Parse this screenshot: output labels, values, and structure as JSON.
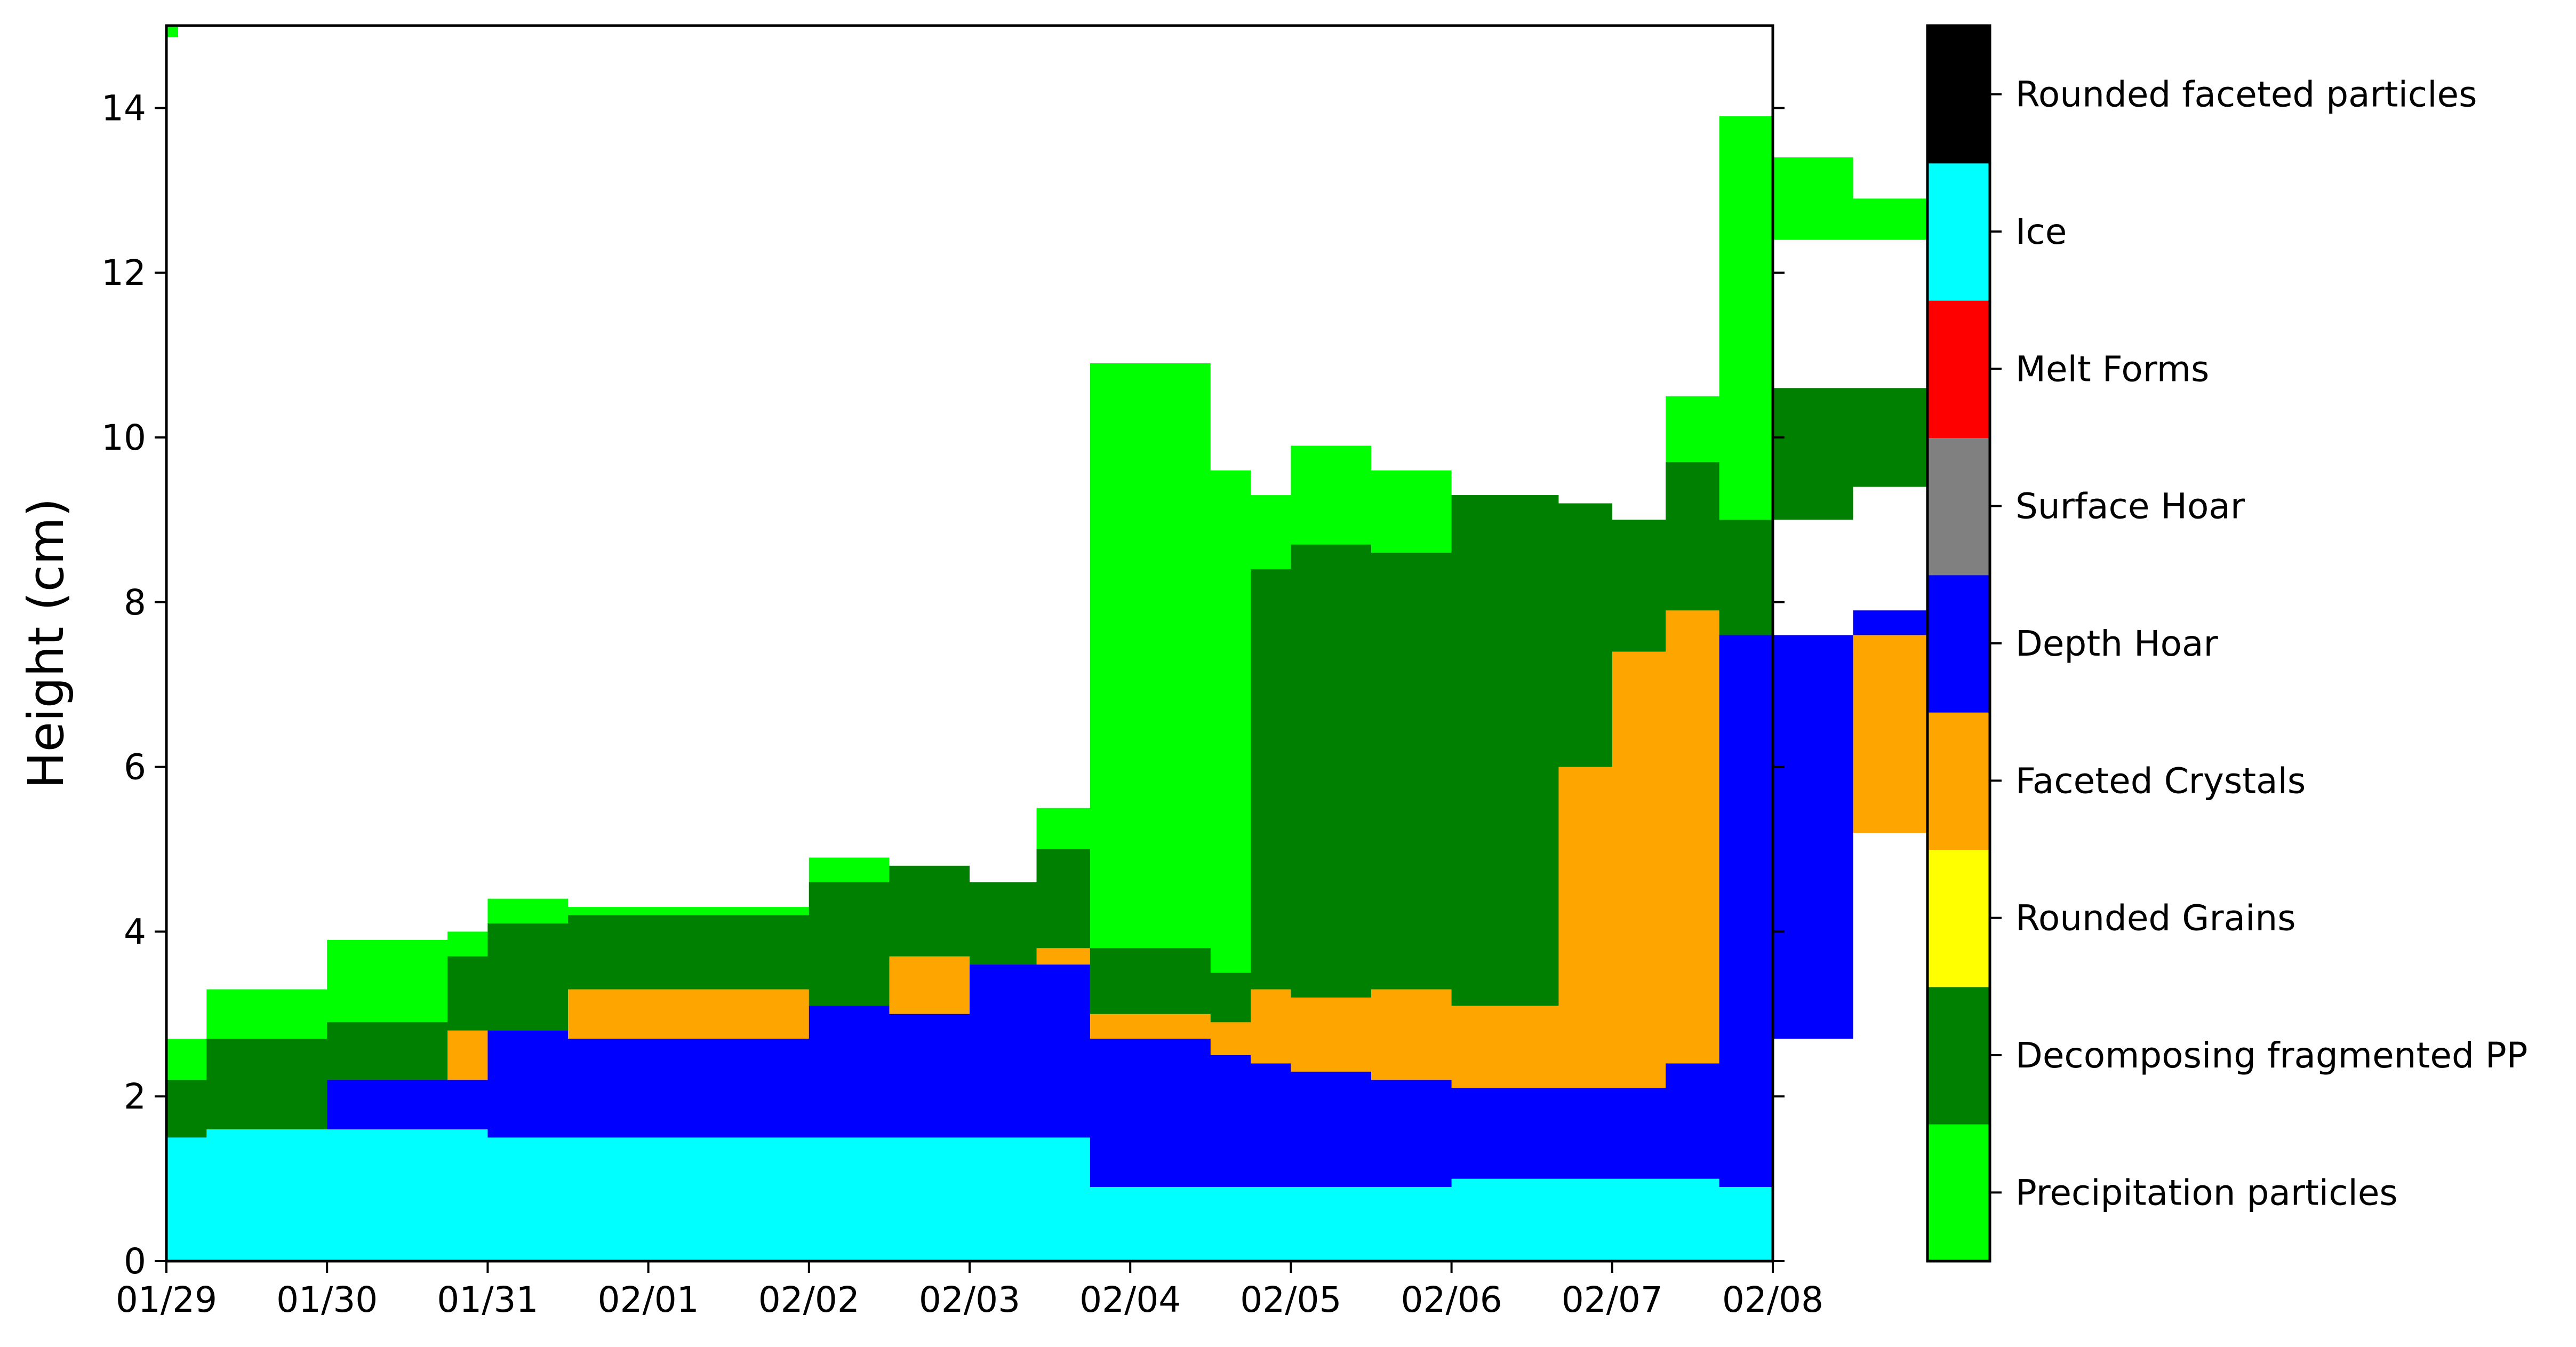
{
  "chart_data": {
    "type": "area",
    "title": "",
    "xlabel": "",
    "ylabel": "Height (cm)",
    "ylim": [
      0,
      15
    ],
    "xlim": [
      "01/29",
      "02/08"
    ],
    "x_ticks": [
      "01/29",
      "01/30",
      "01/31",
      "02/01",
      "02/02",
      "02/03",
      "02/04",
      "02/05",
      "02/06",
      "02/07",
      "02/08"
    ],
    "y_ticks": [
      "0",
      "2",
      "4",
      "6",
      "8",
      "10",
      "12",
      "14"
    ],
    "grid": false,
    "legend_type": "colorbar",
    "legend_placement": "right",
    "legend": [
      {
        "label": "Precipitation particles",
        "color": "#00ff00"
      },
      {
        "label": "Decomposing fragmented PP",
        "color": "#008000"
      },
      {
        "label": "Rounded Grains",
        "color": "#ffff00"
      },
      {
        "label": "Faceted Crystals",
        "color": "#ffa500"
      },
      {
        "label": "Depth Hoar",
        "color": "#0000ff"
      },
      {
        "label": "Surface Hoar",
        "color": "#808080"
      },
      {
        "label": "Melt Forms",
        "color": "#ff0000"
      },
      {
        "label": "Ice",
        "color": "#00ffff"
      },
      {
        "label": "Rounded faceted particles",
        "color": "#000000"
      }
    ],
    "layer_tops_note": "cumulative layer top heights (cm) by date, stacked bottom-up: Ice, Depth Hoar, Faceted Crystals, Decomposing fragmented PP, Precipitation particles",
    "layers": {
      "x": [
        "01/29 00:00",
        "01/29 06:00",
        "01/30 00:00",
        "01/30 18:00",
        "01/31 00:00",
        "01/31 12:00",
        "02/01 00:00",
        "02/01 12:00",
        "02/02 00:00",
        "02/02 10:00",
        "02/02 18:00",
        "02/03 12:00",
        "02/03 18:00",
        "02/04 00:00",
        "02/04 12:00",
        "02/05 00:00",
        "02/05 16:00",
        "02/06 00:00",
        "02/06 08:00",
        "02/06 16:00",
        "02/07 00:00",
        "02/07 12:00",
        "02/08 00:00"
      ],
      "ice": [
        1.5,
        1.6,
        1.6,
        1.6,
        1.5,
        1.5,
        1.5,
        1.5,
        1.5,
        1.5,
        0.9,
        0.9,
        0.9,
        0.9,
        0.9,
        1.0,
        1.0,
        1.0,
        1.0,
        0.9,
        0.75,
        0.75,
        0.75
      ],
      "depth_hoar": [
        1.5,
        1.6,
        2.2,
        2.2,
        2.8,
        2.7,
        3.1,
        3.0,
        3.6,
        3.6,
        2.7,
        2.5,
        2.4,
        2.3,
        2.2,
        2.1,
        2.1,
        2.1,
        2.4,
        7.6,
        2.7,
        7.9,
        7.6
      ],
      "faceted": [
        1.5,
        1.6,
        2.2,
        2.8,
        2.8,
        3.3,
        3.1,
        3.7,
        3.6,
        3.8,
        3.0,
        2.9,
        3.3,
        3.2,
        3.3,
        3.1,
        6.0,
        7.4,
        7.9,
        7.6,
        7.4,
        7.9,
        5.2
      ],
      "decomposing": [
        2.2,
        2.7,
        2.9,
        3.7,
        4.1,
        4.2,
        4.6,
        4.8,
        4.6,
        5.0,
        3.8,
        3.5,
        8.4,
        8.7,
        8.6,
        9.3,
        9.2,
        9.0,
        9.7,
        9.0,
        9.0,
        9.4,
        10.6
      ],
      "precip": [
        2.7,
        3.3,
        3.9,
        4.0,
        4.4,
        4.3,
        4.9,
        4.8,
        4.6,
        5.5,
        10.9,
        9.6,
        9.3,
        9.9,
        9.6,
        9.3,
        9.2,
        9.0,
        10.5,
        13.9,
        13.4,
        12.9,
        12.4
      ]
    }
  }
}
